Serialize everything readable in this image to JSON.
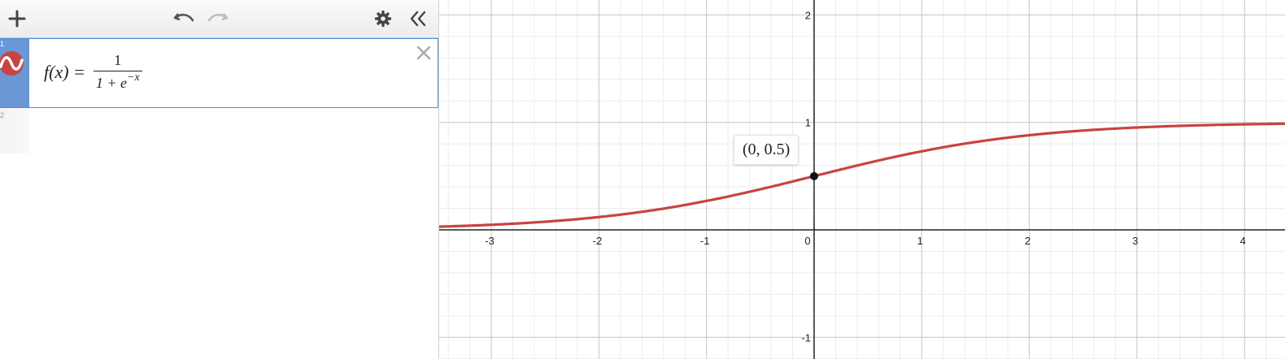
{
  "toolbar": {
    "add_icon": "plus-icon",
    "undo_icon": "undo-icon",
    "redo_icon": "redo-icon",
    "settings_icon": "gear-icon",
    "collapse_icon": "double-chevron-left-icon"
  },
  "expressions": [
    {
      "index": "1",
      "color": "#c74440",
      "lhs": "f(x) =",
      "numerator": "1",
      "denominator_base": "1 + e",
      "denominator_exponent": "−x"
    },
    {
      "index": "2"
    }
  ],
  "graph": {
    "curve_color": "#c74440",
    "x_ticks": [
      "-3",
      "-2",
      "-1",
      "0",
      "1",
      "2",
      "3",
      "4"
    ],
    "y_ticks": [
      "2",
      "1",
      "-1"
    ],
    "point": {
      "x": 0,
      "y": 0.5,
      "label": "(0, 0.5)"
    }
  },
  "chart_data": {
    "type": "line",
    "title": "",
    "xlabel": "",
    "ylabel": "",
    "xlim": [
      -3.5,
      4.3
    ],
    "ylim": [
      -1.15,
      2.1
    ],
    "grid": true,
    "series": [
      {
        "name": "f(x) = 1/(1+e^-x)",
        "function": "logistic",
        "x": [
          -3.5,
          -3,
          -2,
          -1,
          0,
          1,
          2,
          3,
          4,
          4.3
        ],
        "y": [
          0.029,
          0.047,
          0.119,
          0.269,
          0.5,
          0.731,
          0.881,
          0.953,
          0.982,
          0.987
        ]
      }
    ],
    "annotations": [
      {
        "x": 0,
        "y": 0.5,
        "text": "(0, 0.5)"
      }
    ]
  }
}
